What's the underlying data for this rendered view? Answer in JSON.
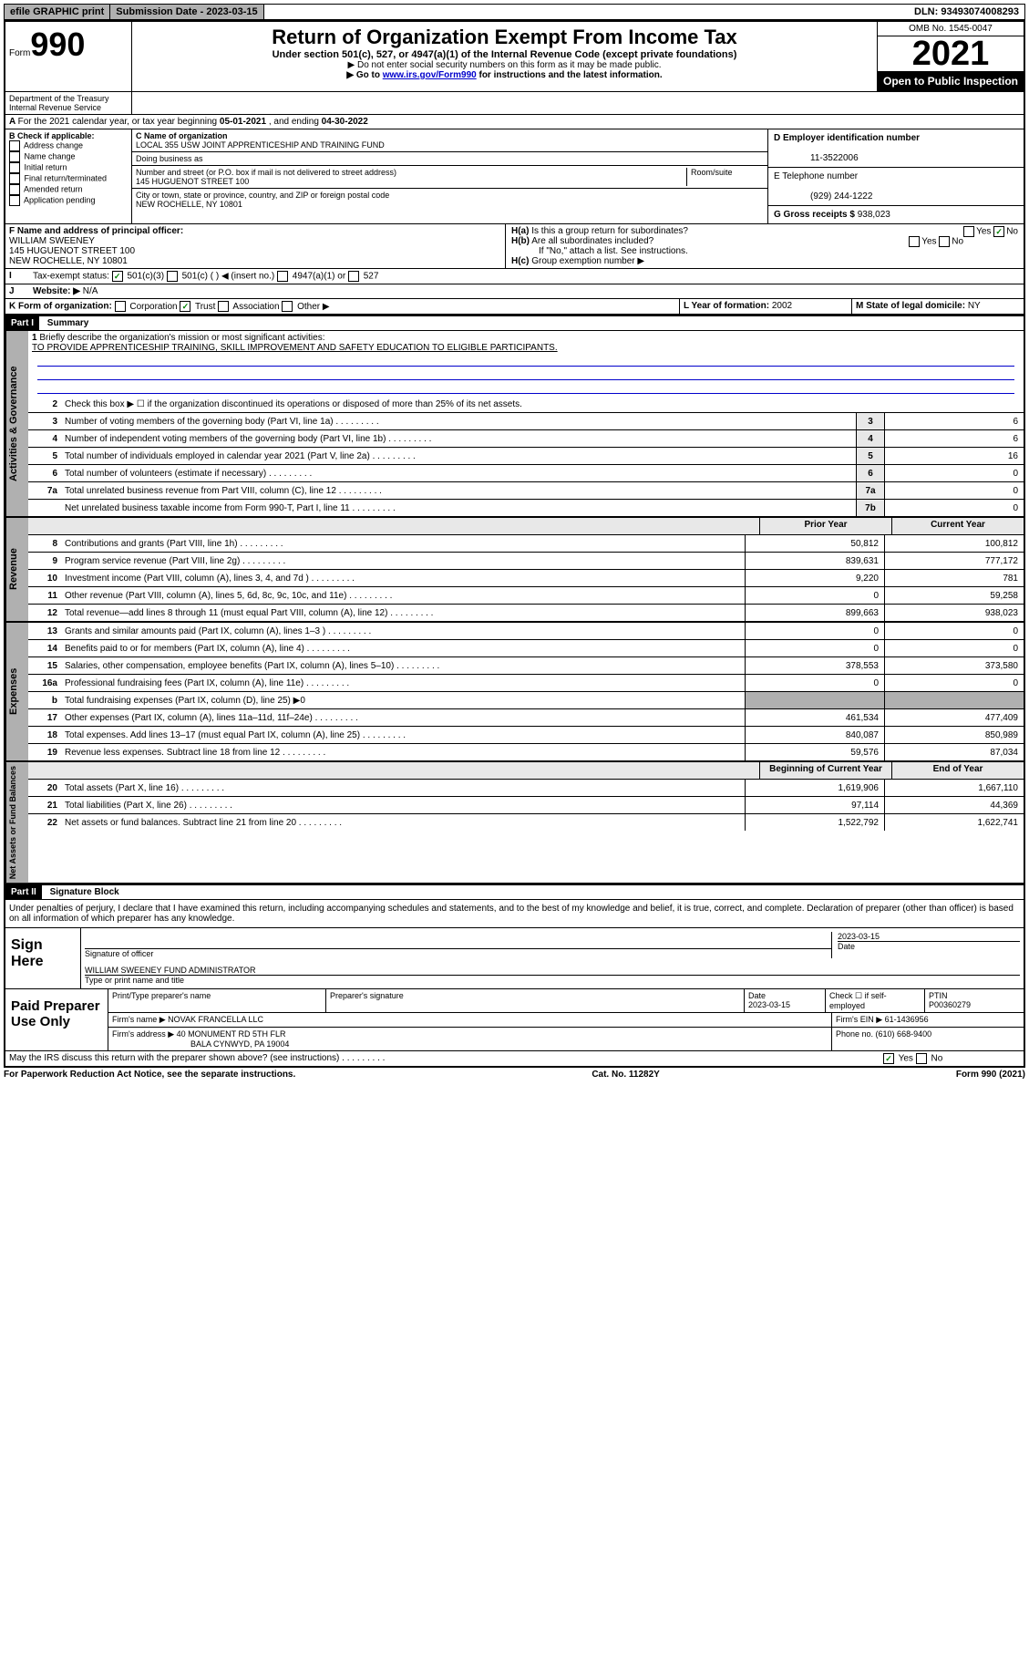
{
  "topbar": {
    "efile": "efile GRAPHIC print",
    "sub_label": "Submission Date - ",
    "sub_date": "2023-03-15",
    "dln_label": "DLN: ",
    "dln": "93493074008293"
  },
  "header": {
    "form_prefix": "Form",
    "form_num": "990",
    "dept": "Department of the Treasury",
    "irs": "Internal Revenue Service",
    "title": "Return of Organization Exempt From Income Tax",
    "subtitle": "Under section 501(c), 527, or 4947(a)(1) of the Internal Revenue Code (except private foundations)",
    "instr1": "▶ Do not enter social security numbers on this form as it may be made public.",
    "instr2_pre": "▶ Go to ",
    "instr2_link": "www.irs.gov/Form990",
    "instr2_post": " for instructions and the latest information.",
    "omb": "OMB No. 1545-0047",
    "year": "2021",
    "open": "Open to Public Inspection"
  },
  "line_a": {
    "text_pre": "For the 2021 calendar year, or tax year beginning ",
    "begin": "05-01-2021",
    "mid": " , and ending ",
    "end": "04-30-2022"
  },
  "box_b": {
    "label": "B Check if applicable:",
    "opts": [
      "Address change",
      "Name change",
      "Initial return",
      "Final return/terminated",
      "Amended return",
      "Application pending"
    ]
  },
  "box_c": {
    "name_label": "C Name of organization",
    "name": "LOCAL 355 USW JOINT APPRENTICESHIP AND TRAINING FUND",
    "dba_label": "Doing business as",
    "addr_label": "Number and street (or P.O. box if mail is not delivered to street address)",
    "room_label": "Room/suite",
    "addr": "145 HUGUENOT STREET 100",
    "city_label": "City or town, state or province, country, and ZIP or foreign postal code",
    "city": "NEW ROCHELLE, NY  10801"
  },
  "box_d": {
    "ein_label": "D Employer identification number",
    "ein": "11-3522006",
    "phone_label": "E Telephone number",
    "phone": "(929) 244-1222",
    "gross_label": "G Gross receipts $ ",
    "gross": "938,023"
  },
  "box_f": {
    "label": "F Name and address of principal officer:",
    "name": "WILLIAM SWEENEY",
    "addr1": "145 HUGUENOT STREET 100",
    "addr2": "NEW ROCHELLE, NY  10801"
  },
  "box_h": {
    "ha": "H(a)  Is this a group return for subordinates?",
    "hb": "H(b)  Are all subordinates included?",
    "hb_note": "If \"No,\" attach a list. See instructions.",
    "hc": "H(c)  Group exemption number ▶",
    "yes": "Yes",
    "no": "No"
  },
  "box_i": {
    "label": "Tax-exempt status:",
    "o1": "501(c)(3)",
    "o2": "501(c) (  ) ◀ (insert no.)",
    "o3": "4947(a)(1) or",
    "o4": "527"
  },
  "box_j": {
    "label": "Website: ▶",
    "val": "N/A"
  },
  "box_k": {
    "label": "K Form of organization:",
    "opts": [
      "Corporation",
      "Trust",
      "Association",
      "Other ▶"
    ],
    "checked_idx": 1
  },
  "box_l": {
    "label": "L Year of formation: ",
    "val": "2002"
  },
  "box_m": {
    "label": "M State of legal domicile: ",
    "val": "NY"
  },
  "part1": {
    "header": "Part I",
    "title": "Summary"
  },
  "activities": {
    "tab": "Activities & Governance",
    "l1_label": "Briefly describe the organization's mission or most significant activities:",
    "l1_val": "TO PROVIDE APPRENTICESHIP TRAINING, SKILL IMPROVEMENT AND SAFETY EDUCATION TO ELIGIBLE PARTICIPANTS.",
    "l2": "Check this box ▶ ☐  if the organization discontinued its operations or disposed of more than 25% of its net assets.",
    "rows": [
      {
        "n": "3",
        "d": "Number of voting members of the governing body (Part VI, line 1a)",
        "box": "3",
        "v": "6"
      },
      {
        "n": "4",
        "d": "Number of independent voting members of the governing body (Part VI, line 1b)",
        "box": "4",
        "v": "6"
      },
      {
        "n": "5",
        "d": "Total number of individuals employed in calendar year 2021 (Part V, line 2a)",
        "box": "5",
        "v": "16"
      },
      {
        "n": "6",
        "d": "Total number of volunteers (estimate if necessary)",
        "box": "6",
        "v": "0"
      },
      {
        "n": "7a",
        "d": "Total unrelated business revenue from Part VIII, column (C), line 12",
        "box": "7a",
        "v": "0"
      },
      {
        "n": "",
        "d": "Net unrelated business taxable income from Form 990-T, Part I, line 11",
        "box": "7b",
        "v": "0"
      }
    ]
  },
  "revenue": {
    "tab": "Revenue",
    "head_prior": "Prior Year",
    "head_curr": "Current Year",
    "rows": [
      {
        "n": "8",
        "d": "Contributions and grants (Part VIII, line 1h)",
        "p": "50,812",
        "c": "100,812"
      },
      {
        "n": "9",
        "d": "Program service revenue (Part VIII, line 2g)",
        "p": "839,631",
        "c": "777,172"
      },
      {
        "n": "10",
        "d": "Investment income (Part VIII, column (A), lines 3, 4, and 7d )",
        "p": "9,220",
        "c": "781"
      },
      {
        "n": "11",
        "d": "Other revenue (Part VIII, column (A), lines 5, 6d, 8c, 9c, 10c, and 11e)",
        "p": "0",
        "c": "59,258"
      },
      {
        "n": "12",
        "d": "Total revenue—add lines 8 through 11 (must equal Part VIII, column (A), line 12)",
        "p": "899,663",
        "c": "938,023"
      }
    ]
  },
  "expenses": {
    "tab": "Expenses",
    "rows": [
      {
        "n": "13",
        "d": "Grants and similar amounts paid (Part IX, column (A), lines 1–3 )",
        "p": "0",
        "c": "0"
      },
      {
        "n": "14",
        "d": "Benefits paid to or for members (Part IX, column (A), line 4)",
        "p": "0",
        "c": "0"
      },
      {
        "n": "15",
        "d": "Salaries, other compensation, employee benefits (Part IX, column (A), lines 5–10)",
        "p": "378,553",
        "c": "373,580"
      },
      {
        "n": "16a",
        "d": "Professional fundraising fees (Part IX, column (A), line 11e)",
        "p": "0",
        "c": "0"
      },
      {
        "n": "b",
        "d": "Total fundraising expenses (Part IX, column (D), line 25) ▶0",
        "p": "",
        "c": "",
        "shade": true
      },
      {
        "n": "17",
        "d": "Other expenses (Part IX, column (A), lines 11a–11d, 11f–24e)",
        "p": "461,534",
        "c": "477,409"
      },
      {
        "n": "18",
        "d": "Total expenses. Add lines 13–17 (must equal Part IX, column (A), line 25)",
        "p": "840,087",
        "c": "850,989"
      },
      {
        "n": "19",
        "d": "Revenue less expenses. Subtract line 18 from line 12",
        "p": "59,576",
        "c": "87,034"
      }
    ]
  },
  "netassets": {
    "tab": "Net Assets or Fund Balances",
    "head_begin": "Beginning of Current Year",
    "head_end": "End of Year",
    "rows": [
      {
        "n": "20",
        "d": "Total assets (Part X, line 16)",
        "p": "1,619,906",
        "c": "1,667,110"
      },
      {
        "n": "21",
        "d": "Total liabilities (Part X, line 26)",
        "p": "97,114",
        "c": "44,369"
      },
      {
        "n": "22",
        "d": "Net assets or fund balances. Subtract line 21 from line 20",
        "p": "1,522,792",
        "c": "1,622,741"
      }
    ]
  },
  "part2": {
    "header": "Part II",
    "title": "Signature Block"
  },
  "sig": {
    "declaration": "Under penalties of perjury, I declare that I have examined this return, including accompanying schedules and statements, and to the best of my knowledge and belief, it is true, correct, and complete. Declaration of preparer (other than officer) is based on all information of which preparer has any knowledge.",
    "sign_here": "Sign Here",
    "sig_officer": "Signature of officer",
    "date_label": "Date",
    "sig_date": "2023-03-15",
    "name_title": "WILLIAM SWEENEY FUND ADMINISTRATOR",
    "type_name": "Type or print name and title"
  },
  "prep": {
    "label": "Paid Preparer Use Only",
    "h1": "Print/Type preparer's name",
    "h2": "Preparer's signature",
    "h3": "Date",
    "date": "2023-03-15",
    "h4_pre": "Check ☐ if self-employed",
    "h5": "PTIN",
    "ptin": "P00360279",
    "firm_name_l": "Firm's name   ▶ ",
    "firm_name": "NOVAK FRANCELLA LLC",
    "firm_ein_l": "Firm's EIN ▶ ",
    "firm_ein": "61-1436956",
    "firm_addr_l": "Firm's address ▶ ",
    "firm_addr1": "40 MONUMENT RD 5TH FLR",
    "firm_addr2": "BALA CYNWYD, PA  19004",
    "phone_l": "Phone no. ",
    "phone": "(610) 668-9400"
  },
  "may_discuss": {
    "text": "May the IRS discuss this return with the preparer shown above? (see instructions)",
    "yes": "Yes",
    "no": "No"
  },
  "footer": {
    "left": "For Paperwork Reduction Act Notice, see the separate instructions.",
    "mid": "Cat. No. 11282Y",
    "right": "Form 990 (2021)"
  }
}
